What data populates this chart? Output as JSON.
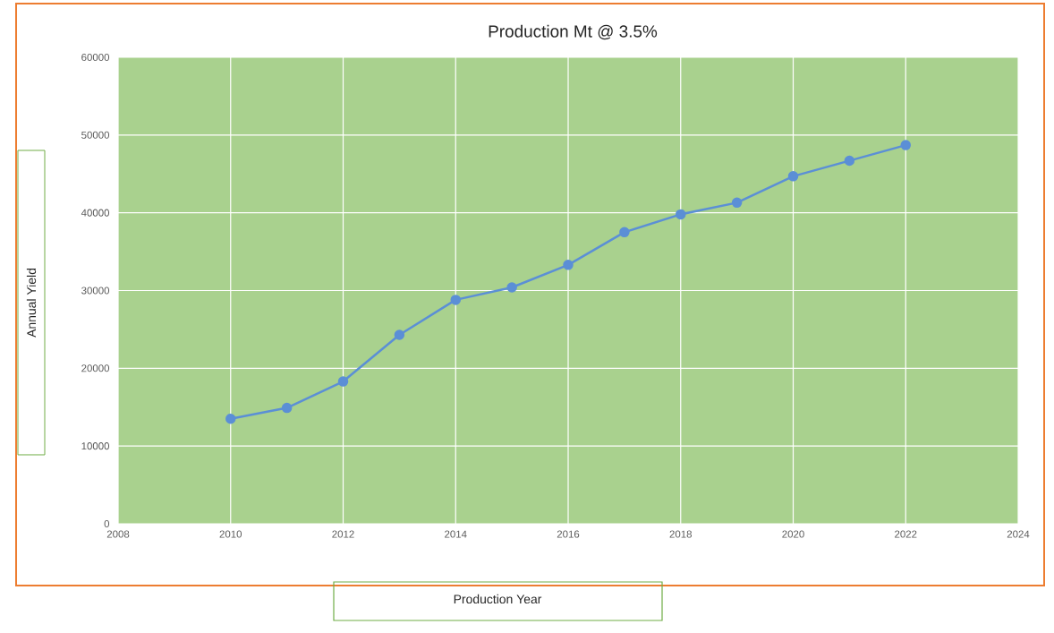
{
  "chart_data": {
    "type": "line",
    "title": "Production Mt @ 3.5%",
    "xlabel": "Production Year",
    "ylabel": "Annual Yield",
    "x": [
      2010,
      2011,
      2012,
      2013,
      2014,
      2015,
      2016,
      2017,
      2018,
      2019,
      2020,
      2021,
      2022
    ],
    "values": [
      13500,
      14900,
      18300,
      24300,
      28800,
      30400,
      33300,
      37500,
      39800,
      41300,
      44700,
      46700,
      48700
    ],
    "color": "#5b8fd6",
    "xlim": [
      2008,
      2024
    ],
    "ylim": [
      0,
      60000
    ],
    "xticks": [
      2008,
      2010,
      2012,
      2014,
      2016,
      2018,
      2020,
      2022,
      2024
    ],
    "yticks": [
      0,
      10000,
      20000,
      30000,
      40000,
      50000,
      60000
    ],
    "grid": true,
    "marker": "circle",
    "line_style": "solid"
  }
}
